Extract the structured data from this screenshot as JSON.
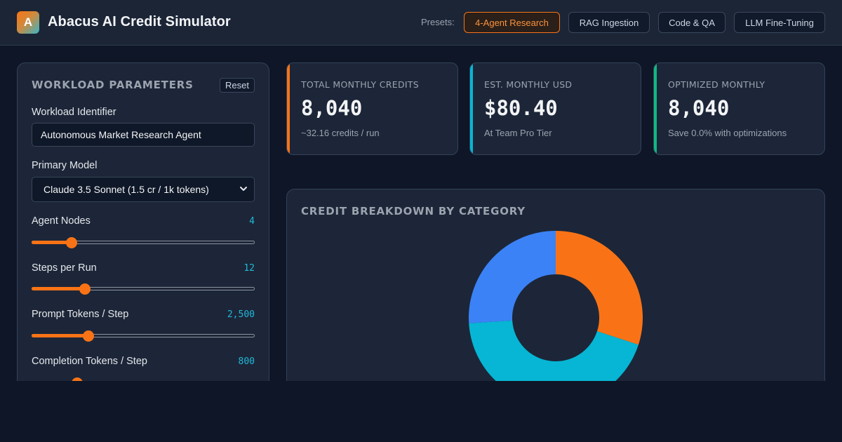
{
  "header": {
    "logo_letter": "A",
    "title": "Abacus AI Credit Simulator",
    "presets_label": "Presets:",
    "presets": [
      {
        "label": "4-Agent Research",
        "active": true
      },
      {
        "label": "RAG Ingestion",
        "active": false
      },
      {
        "label": "Code & QA",
        "active": false
      },
      {
        "label": "LLM Fine-Tuning",
        "active": false
      }
    ]
  },
  "sidebar": {
    "title": "WORKLOAD PARAMETERS",
    "reset_label": "Reset",
    "workload_label": "Workload Identifier",
    "workload_value": "Autonomous Market Research Agent",
    "model_label": "Primary Model",
    "model_value": "Claude 3.5 Sonnet (1.5 cr / 1k tokens)",
    "sliders": [
      {
        "label": "Agent Nodes",
        "display": "4",
        "fraction": 0.18
      },
      {
        "label": "Steps per Run",
        "display": "12",
        "fraction": 0.24
      },
      {
        "label": "Prompt Tokens / Step",
        "display": "2,500",
        "fraction": 0.255
      },
      {
        "label": "Completion Tokens / Step",
        "display": "800",
        "fraction": 0.205
      }
    ]
  },
  "stats": [
    {
      "label": "TOTAL MONTHLY CREDITS",
      "value": "8,040",
      "sub": "~32.16 credits / run",
      "color": "#f97316"
    },
    {
      "label": "EST. MONTHLY USD",
      "value": "$80.40",
      "sub": "At Team Pro Tier",
      "color": "#06b6d4"
    },
    {
      "label": "OPTIMIZED MONTHLY",
      "value": "8,040",
      "sub": "Save 0.0% with optimizations",
      "color": "#10b981"
    }
  ],
  "chart": {
    "title": "CREDIT BREAKDOWN BY CATEGORY"
  },
  "chart_data": {
    "type": "pie",
    "title": "CREDIT BREAKDOWN BY CATEGORY",
    "values": [
      30,
      44,
      26
    ],
    "colors": [
      "#f97316",
      "#06b6d4",
      "#3b82f6"
    ]
  }
}
